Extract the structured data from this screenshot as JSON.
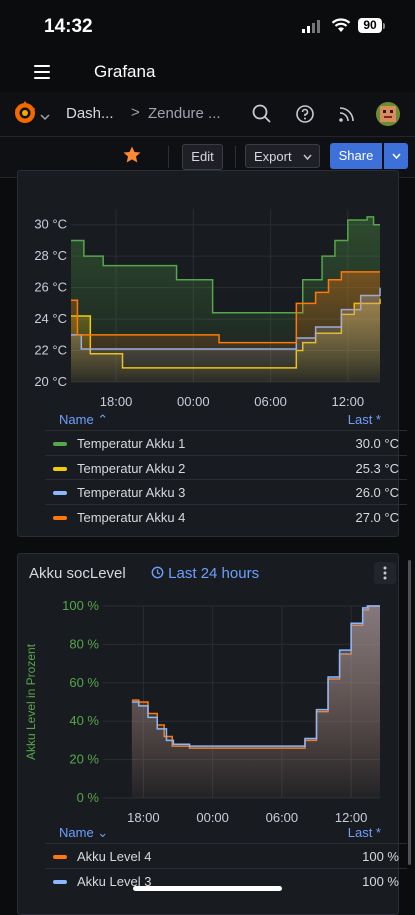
{
  "status": {
    "time": "14:32",
    "battery": "90"
  },
  "app": {
    "title": "Grafana"
  },
  "nav": {
    "breadcrumb1": "Dash...",
    "separator": ">",
    "breadcrumb2": "Zendure ..."
  },
  "toolbar": {
    "edit_label": "Edit",
    "export_label": "Export",
    "share_label": "Share"
  },
  "panel1": {
    "legend_header": {
      "name": "Name",
      "last": "Last *"
    },
    "legend": [
      {
        "name": "Temperatur Akku 1",
        "value": "30.0 °C",
        "color": "#56a64b"
      },
      {
        "name": "Temperatur Akku 2",
        "value": "25.3 °C",
        "color": "#f2cc0c"
      },
      {
        "name": "Temperatur Akku 3",
        "value": "26.0 °C",
        "color": "#8ab8ff"
      },
      {
        "name": "Temperatur Akku 4",
        "value": "27.0 °C",
        "color": "#ff780a"
      }
    ]
  },
  "panel2": {
    "title": "Akku socLevel",
    "time_range": "Last 24 hours",
    "legend_header": {
      "name": "Name",
      "last": "Last *"
    },
    "legend": [
      {
        "name": "Akku Level 4",
        "value": "100 %",
        "color": "#ff780a"
      },
      {
        "name": "Akku Level 3",
        "value": "100 %",
        "color": "#8ab8ff"
      }
    ]
  },
  "chart_data": [
    {
      "type": "line",
      "title": "",
      "x_ticks": [
        "18:00",
        "00:00",
        "06:00",
        "12:00"
      ],
      "y_ticks": [
        "20 °C",
        "22 °C",
        "24 °C",
        "26 °C",
        "28 °C",
        "30 °C"
      ],
      "ylim": [
        20,
        31
      ],
      "xlim": [
        14.5,
        38.5
      ],
      "series": [
        {
          "name": "Temperatur Akku 1",
          "color": "#56a64b",
          "points": [
            [
              14.5,
              29.0
            ],
            [
              15.5,
              28.0
            ],
            [
              17.0,
              27.4
            ],
            [
              22.0,
              27.4
            ],
            [
              22.7,
              26.5
            ],
            [
              25.0,
              26.5
            ],
            [
              25.5,
              24.4
            ],
            [
              31.5,
              24.4
            ],
            [
              32.5,
              26.5
            ],
            [
              34.0,
              28.0
            ],
            [
              35.0,
              29.0
            ],
            [
              36.0,
              30.3
            ],
            [
              37.5,
              30.5
            ],
            [
              38.0,
              30.0
            ],
            [
              38.5,
              30.0
            ]
          ]
        },
        {
          "name": "Temperatur Akku 2",
          "color": "#f2cc0c",
          "points": [
            [
              14.5,
              24.2
            ],
            [
              16.0,
              21.8
            ],
            [
              18.5,
              20.9
            ],
            [
              31.5,
              20.9
            ],
            [
              32.0,
              22.0
            ],
            [
              32.5,
              22.5
            ],
            [
              33.5,
              23.1
            ],
            [
              35.5,
              24.3
            ],
            [
              36.5,
              25.0
            ],
            [
              38.5,
              25.3
            ]
          ]
        },
        {
          "name": "Temperatur Akku 3",
          "color": "#8ab8ff",
          "points": [
            [
              14.5,
              23.0
            ],
            [
              15.3,
              22.1
            ],
            [
              31.0,
              22.1
            ],
            [
              32.0,
              22.8
            ],
            [
              33.5,
              23.5
            ],
            [
              35.5,
              24.6
            ],
            [
              37.0,
              25.5
            ],
            [
              38.5,
              26.0
            ]
          ]
        },
        {
          "name": "Temperatur Akku 4",
          "color": "#ff780a",
          "points": [
            [
              14.5,
              25.2
            ],
            [
              15.0,
              23.0
            ],
            [
              25.5,
              23.0
            ],
            [
              26.0,
              22.5
            ],
            [
              31.0,
              22.5
            ],
            [
              32.0,
              25.0
            ],
            [
              33.5,
              25.7
            ],
            [
              34.5,
              26.5
            ],
            [
              35.5,
              27.0
            ],
            [
              38.5,
              27.0
            ]
          ]
        }
      ]
    },
    {
      "type": "line",
      "title": "Akku socLevel",
      "ylabel": "Akku Level in Prozent",
      "x_ticks": [
        "18:00",
        "00:00",
        "06:00",
        "12:00"
      ],
      "y_ticks": [
        "0 %",
        "20 %",
        "40 %",
        "60 %",
        "80 %",
        "100 %"
      ],
      "ylim": [
        0,
        100
      ],
      "xlim": [
        14.5,
        38.5
      ],
      "series": [
        {
          "name": "Akku Level 4",
          "color": "#ff780a",
          "points": [
            [
              17.0,
              51
            ],
            [
              17.6,
              50
            ],
            [
              18.4,
              44
            ],
            [
              19.2,
              38
            ],
            [
              19.8,
              32
            ],
            [
              20.5,
              27
            ],
            [
              22.0,
              26
            ],
            [
              31.0,
              26
            ],
            [
              32.0,
              30
            ],
            [
              33.0,
              45
            ],
            [
              34.0,
              62
            ],
            [
              35.0,
              75
            ],
            [
              36.0,
              90
            ],
            [
              37.0,
              98
            ],
            [
              37.5,
              100
            ],
            [
              38.5,
              100
            ]
          ]
        },
        {
          "name": "Akku Level 3",
          "color": "#8ab8ff",
          "points": [
            [
              17.0,
              50
            ],
            [
              17.6,
              48
            ],
            [
              18.4,
              42
            ],
            [
              19.2,
              36
            ],
            [
              20.0,
              30
            ],
            [
              20.6,
              28
            ],
            [
              22.0,
              27
            ],
            [
              31.0,
              27
            ],
            [
              32.0,
              31
            ],
            [
              33.0,
              46
            ],
            [
              34.0,
              63
            ],
            [
              35.0,
              77
            ],
            [
              36.0,
              91
            ],
            [
              37.0,
              99
            ],
            [
              37.4,
              100
            ],
            [
              38.5,
              100
            ]
          ]
        }
      ]
    }
  ]
}
